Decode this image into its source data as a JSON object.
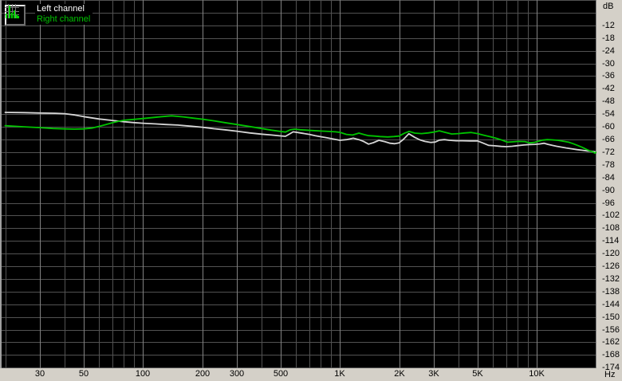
{
  "legend": {
    "left_label": "Left channel",
    "right_label": "Right channel"
  },
  "axes": {
    "db_unit": "dB",
    "hz_unit": "Hz"
  },
  "colors": {
    "panel_bg": "#d4d0c8",
    "plot_bg": "#000000",
    "grid": "#525252",
    "grid_major": "#828282",
    "left_channel": "#d6d6d6",
    "right_channel": "#00c400",
    "legend_left_text": "#ffffff",
    "legend_right_text": "#00c400"
  },
  "chart_data": {
    "type": "line",
    "title": "",
    "x_scale": "log",
    "x_unit": "Hz",
    "y_unit": "dB",
    "x_range_hz": [
      18.85,
      20000
    ],
    "y_range_db": [
      -174.3,
      0
    ],
    "grid": true,
    "legend_position": "top-left",
    "x_gridlines_hz": [
      20,
      30,
      40,
      50,
      60,
      70,
      80,
      90,
      100,
      200,
      300,
      400,
      500,
      600,
      700,
      800,
      900,
      1000,
      2000,
      3000,
      4000,
      5000,
      6000,
      7000,
      8000,
      9000,
      10000,
      20000
    ],
    "x_major_gridlines_hz": [
      30,
      50,
      100,
      200,
      300,
      500,
      1000,
      2000,
      3000,
      5000,
      10000,
      20000
    ],
    "x_tick_labels": [
      {
        "hz": 30,
        "label": "30"
      },
      {
        "hz": 50,
        "label": "50"
      },
      {
        "hz": 100,
        "label": "100"
      },
      {
        "hz": 200,
        "label": "200"
      },
      {
        "hz": 300,
        "label": "300"
      },
      {
        "hz": 500,
        "label": "500"
      },
      {
        "hz": 1000,
        "label": "1K"
      },
      {
        "hz": 2000,
        "label": "2K"
      },
      {
        "hz": 3000,
        "label": "3K"
      },
      {
        "hz": 5000,
        "label": "5K"
      },
      {
        "hz": 10000,
        "label": "10K"
      }
    ],
    "y_gridline_step_db": 6,
    "y_tick_labels": [
      "-12",
      "-18",
      "-24",
      "-30",
      "-36",
      "-42",
      "-48",
      "-54",
      "-60",
      "-66",
      "-72",
      "-78",
      "-84",
      "-90",
      "-96",
      "-102",
      "-108",
      "-114",
      "-120",
      "-126",
      "-132",
      "-138",
      "-144",
      "-150",
      "-156",
      "-162",
      "-168",
      "-174"
    ],
    "series": [
      {
        "name": "Left channel",
        "color": "#d6d6d6",
        "points": [
          [
            20,
            -53.2
          ],
          [
            25,
            -53.3
          ],
          [
            30,
            -53.5
          ],
          [
            36,
            -53.6
          ],
          [
            40,
            -53.8
          ],
          [
            45,
            -54.4
          ],
          [
            50,
            -55.2
          ],
          [
            60,
            -56.3
          ],
          [
            70,
            -57.0
          ],
          [
            80,
            -57.6
          ],
          [
            90,
            -58.0
          ],
          [
            100,
            -58.3
          ],
          [
            115,
            -58.6
          ],
          [
            130,
            -58.9
          ],
          [
            150,
            -59.2
          ],
          [
            175,
            -59.7
          ],
          [
            200,
            -60.2
          ],
          [
            230,
            -60.9
          ],
          [
            260,
            -61.4
          ],
          [
            300,
            -62.1
          ],
          [
            350,
            -62.9
          ],
          [
            400,
            -63.5
          ],
          [
            450,
            -63.9
          ],
          [
            500,
            -64.3
          ],
          [
            530,
            -64.5
          ],
          [
            555,
            -63.4
          ],
          [
            580,
            -62.4
          ],
          [
            610,
            -62.7
          ],
          [
            650,
            -63.1
          ],
          [
            700,
            -63.6
          ],
          [
            750,
            -64.2
          ],
          [
            800,
            -64.7
          ],
          [
            850,
            -65.1
          ],
          [
            920,
            -65.7
          ],
          [
            1000,
            -66.4
          ],
          [
            1080,
            -66.1
          ],
          [
            1170,
            -65.4
          ],
          [
            1250,
            -66.1
          ],
          [
            1320,
            -66.9
          ],
          [
            1400,
            -68.2
          ],
          [
            1480,
            -67.5
          ],
          [
            1580,
            -66.4
          ],
          [
            1700,
            -67.1
          ],
          [
            1800,
            -67.8
          ],
          [
            1900,
            -68.0
          ],
          [
            2000,
            -67.6
          ],
          [
            2100,
            -66.0
          ],
          [
            2240,
            -63.3
          ],
          [
            2400,
            -65.0
          ],
          [
            2550,
            -66.2
          ],
          [
            2700,
            -66.9
          ],
          [
            2900,
            -67.4
          ],
          [
            3050,
            -67.2
          ],
          [
            3200,
            -66.3
          ],
          [
            3400,
            -66.1
          ],
          [
            3600,
            -66.4
          ],
          [
            3900,
            -66.6
          ],
          [
            4200,
            -66.6
          ],
          [
            4600,
            -66.7
          ],
          [
            5000,
            -66.7
          ],
          [
            5300,
            -67.6
          ],
          [
            5700,
            -68.8
          ],
          [
            6100,
            -69.0
          ],
          [
            6600,
            -69.3
          ],
          [
            7000,
            -69.4
          ],
          [
            7500,
            -69.2
          ],
          [
            8000,
            -68.9
          ],
          [
            8600,
            -68.6
          ],
          [
            9200,
            -68.4
          ],
          [
            9800,
            -68.3
          ],
          [
            10400,
            -68.1
          ],
          [
            10900,
            -67.8
          ],
          [
            11400,
            -68.3
          ],
          [
            12000,
            -68.8
          ],
          [
            12600,
            -69.2
          ],
          [
            13300,
            -69.6
          ],
          [
            14100,
            -70.0
          ],
          [
            15000,
            -70.4
          ],
          [
            16000,
            -70.8
          ],
          [
            17000,
            -71.1
          ],
          [
            18000,
            -71.4
          ],
          [
            19000,
            -71.6
          ],
          [
            20000,
            -71.9
          ]
        ]
      },
      {
        "name": "Right channel",
        "color": "#00c400",
        "points": [
          [
            20,
            -59.5
          ],
          [
            25,
            -60.0
          ],
          [
            30,
            -60.4
          ],
          [
            35,
            -60.8
          ],
          [
            40,
            -61.0
          ],
          [
            45,
            -61.1
          ],
          [
            50,
            -61.0
          ],
          [
            55,
            -60.6
          ],
          [
            60,
            -59.8
          ],
          [
            65,
            -58.9
          ],
          [
            70,
            -58.1
          ],
          [
            75,
            -57.4
          ],
          [
            80,
            -56.9
          ],
          [
            85,
            -56.7
          ],
          [
            90,
            -56.5
          ],
          [
            100,
            -56.1
          ],
          [
            110,
            -55.7
          ],
          [
            125,
            -55.2
          ],
          [
            140,
            -54.8
          ],
          [
            160,
            -55.3
          ],
          [
            180,
            -55.9
          ],
          [
            200,
            -56.4
          ],
          [
            230,
            -57.2
          ],
          [
            260,
            -58.0
          ],
          [
            300,
            -58.9
          ],
          [
            350,
            -59.9
          ],
          [
            400,
            -60.8
          ],
          [
            450,
            -61.6
          ],
          [
            500,
            -62.2
          ],
          [
            530,
            -62.5
          ],
          [
            560,
            -61.4
          ],
          [
            590,
            -61.1
          ],
          [
            630,
            -61.4
          ],
          [
            680,
            -61.6
          ],
          [
            730,
            -61.8
          ],
          [
            800,
            -62.0
          ],
          [
            880,
            -62.2
          ],
          [
            950,
            -62.4
          ],
          [
            1000,
            -62.6
          ],
          [
            1080,
            -63.6
          ],
          [
            1160,
            -63.9
          ],
          [
            1250,
            -63.0
          ],
          [
            1330,
            -63.7
          ],
          [
            1400,
            -64.2
          ],
          [
            1500,
            -64.4
          ],
          [
            1600,
            -64.6
          ],
          [
            1750,
            -64.8
          ],
          [
            1880,
            -64.6
          ],
          [
            2000,
            -64.4
          ],
          [
            2120,
            -63.1
          ],
          [
            2250,
            -62.2
          ],
          [
            2400,
            -63.0
          ],
          [
            2600,
            -63.2
          ],
          [
            2800,
            -62.9
          ],
          [
            3000,
            -62.5
          ],
          [
            3200,
            -61.9
          ],
          [
            3450,
            -62.7
          ],
          [
            3700,
            -63.4
          ],
          [
            4000,
            -63.2
          ],
          [
            4300,
            -62.9
          ],
          [
            4650,
            -62.7
          ],
          [
            5000,
            -63.2
          ],
          [
            5400,
            -64.0
          ],
          [
            5800,
            -64.7
          ],
          [
            6200,
            -65.4
          ],
          [
            6700,
            -66.4
          ],
          [
            7100,
            -67.3
          ],
          [
            7600,
            -67.1
          ],
          [
            8100,
            -66.9
          ],
          [
            8700,
            -67.0
          ],
          [
            9200,
            -67.6
          ],
          [
            9700,
            -67.4
          ],
          [
            10200,
            -66.8
          ],
          [
            10700,
            -66.3
          ],
          [
            11300,
            -66.1
          ],
          [
            12000,
            -66.2
          ],
          [
            12800,
            -66.4
          ],
          [
            13600,
            -66.8
          ],
          [
            14500,
            -67.3
          ],
          [
            15300,
            -68.0
          ],
          [
            16200,
            -68.9
          ],
          [
            17000,
            -69.7
          ],
          [
            17800,
            -70.6
          ],
          [
            18600,
            -71.4
          ],
          [
            19300,
            -71.9
          ],
          [
            19700,
            -72.5
          ],
          [
            20000,
            -72.0
          ]
        ]
      }
    ]
  }
}
